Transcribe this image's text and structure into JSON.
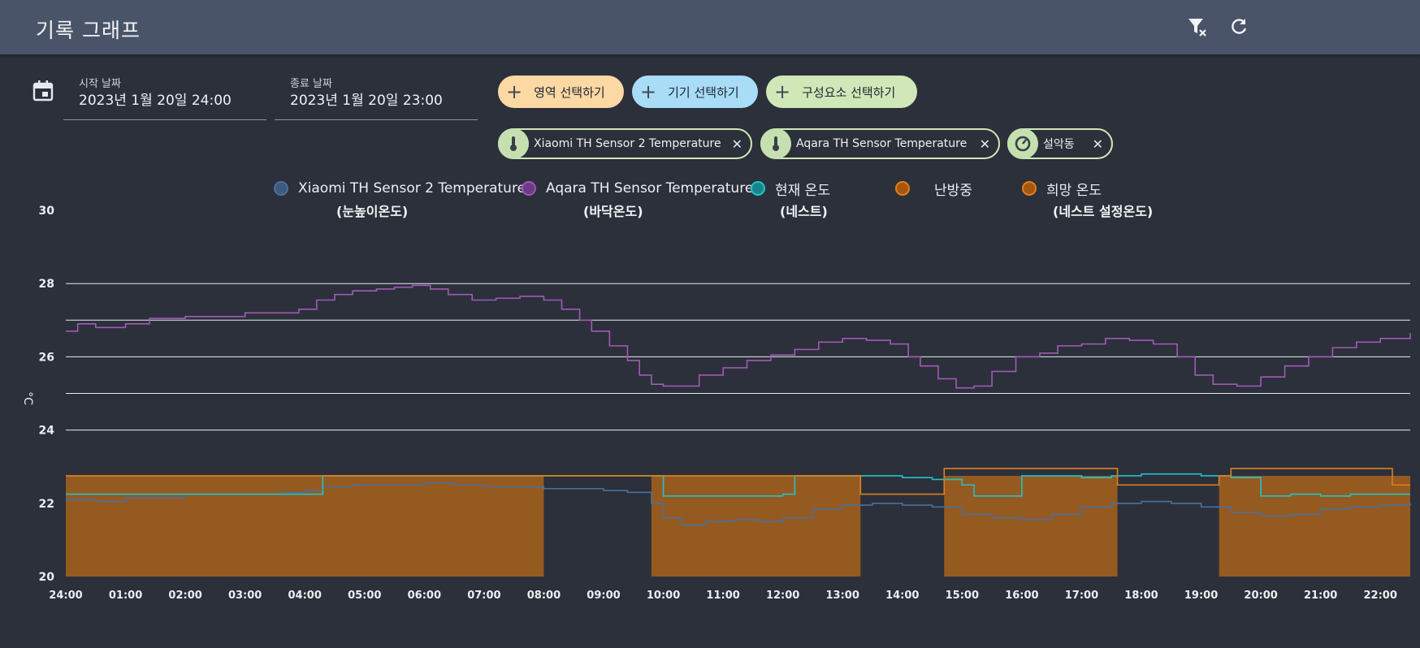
{
  "header": {
    "title": "기록 그래프",
    "icons": [
      "filter-remove-icon",
      "refresh-icon"
    ]
  },
  "date_range": {
    "icon": "calendar-icon",
    "start": {
      "label": "시작 날짜",
      "value": "2023년 1월 20일 24:00"
    },
    "end": {
      "label": "종료 날짜",
      "value": "2023년 1월 20일 23:00"
    }
  },
  "pickers": [
    {
      "label": "영역 선택하기",
      "color": "#fcd8a4"
    },
    {
      "label": "기기 선택하기",
      "color": "#a8dcf7"
    },
    {
      "label": "구성요소 선택하기",
      "color": "#d0e8b8"
    }
  ],
  "selected": [
    {
      "label": "Xiaomi TH Sensor 2 Temperature",
      "icon": "thermometer-icon"
    },
    {
      "label": "Aqara TH Sensor Temperature",
      "icon": "thermometer-icon"
    },
    {
      "label": "설악동",
      "icon": "thermostat-icon"
    }
  ],
  "legend": [
    {
      "label": "Xiaomi TH Sensor 2 Temperature",
      "note": "(눈높이온도)",
      "color": "#3d5a80"
    },
    {
      "label": "Aqara TH Sensor Temperature",
      "note": "(바닥온도)",
      "color": "#8e44ad"
    },
    {
      "label": "현재 온도",
      "note": "(네스트)",
      "color": "#1aa6ab"
    },
    {
      "label": "난방중",
      "note": "",
      "color": "#c66d16"
    },
    {
      "label": "희망 온도",
      "note": "(네스트 설정온도)",
      "color": "#c66d16"
    }
  ],
  "chart_data": {
    "type": "line",
    "ylabel": "°C",
    "ylim": [
      20,
      30
    ],
    "yticks": [
      20,
      22,
      24,
      26,
      28,
      30
    ],
    "xlim": [
      0,
      22.5
    ],
    "xticks": [
      "24:00",
      "01:00",
      "02:00",
      "03:00",
      "04:00",
      "05:00",
      "06:00",
      "07:00",
      "08:00",
      "09:00",
      "10:00",
      "11:00",
      "12:00",
      "13:00",
      "14:00",
      "15:00",
      "16:00",
      "17:00",
      "18:00",
      "19:00",
      "20:00",
      "21:00",
      "22:00"
    ],
    "grid_values": [
      24,
      25,
      26,
      27,
      28
    ],
    "series": [
      {
        "name": "Aqara TH Sensor Temperature",
        "color": "#a259b5",
        "x": [
          0,
          0.2,
          0.5,
          1.0,
          1.4,
          2.0,
          2.5,
          3.0,
          3.5,
          3.9,
          4.2,
          4.5,
          4.8,
          5.2,
          5.5,
          5.8,
          6.1,
          6.4,
          6.8,
          7.2,
          7.6,
          8.0,
          8.3,
          8.6,
          8.8,
          9.1,
          9.4,
          9.6,
          9.8,
          10.0,
          10.2,
          10.6,
          11.0,
          11.4,
          11.8,
          12.2,
          12.6,
          13.0,
          13.4,
          13.8,
          14.1,
          14.3,
          14.6,
          14.9,
          15.2,
          15.5,
          15.9,
          16.3,
          16.6,
          17.0,
          17.4,
          17.8,
          18.2,
          18.6,
          18.9,
          19.2,
          19.6,
          20.0,
          20.4,
          20.8,
          21.2,
          21.6,
          22.0,
          22.5
        ],
        "y": [
          26.7,
          26.9,
          26.8,
          26.9,
          27.05,
          27.1,
          27.1,
          27.2,
          27.2,
          27.3,
          27.55,
          27.7,
          27.8,
          27.85,
          27.9,
          27.95,
          27.85,
          27.7,
          27.55,
          27.6,
          27.65,
          27.55,
          27.3,
          27.0,
          26.7,
          26.3,
          25.9,
          25.5,
          25.25,
          25.2,
          25.2,
          25.5,
          25.7,
          25.9,
          26.05,
          26.2,
          26.4,
          26.5,
          26.45,
          26.35,
          26.0,
          25.75,
          25.4,
          25.15,
          25.2,
          25.6,
          26.0,
          26.1,
          26.3,
          26.35,
          26.5,
          26.45,
          26.35,
          26.0,
          25.5,
          25.25,
          25.2,
          25.45,
          25.75,
          26.0,
          26.25,
          26.4,
          26.5,
          26.65
        ]
      },
      {
        "name": "Xiaomi TH Sensor 2 Temperature",
        "color": "#4a6f9a",
        "x": [
          0,
          0.5,
          1.0,
          2.0,
          3.0,
          3.6,
          4.0,
          4.3,
          4.8,
          5.5,
          6.0,
          6.5,
          7.0,
          8.0,
          9.0,
          9.4,
          9.8,
          10.0,
          10.3,
          10.7,
          11.2,
          11.6,
          12.0,
          12.5,
          13.0,
          13.5,
          14.0,
          14.5,
          15.0,
          15.5,
          16.0,
          16.5,
          17.0,
          17.5,
          18.0,
          18.5,
          19.0,
          19.5,
          20.0,
          20.5,
          21.0,
          21.5,
          22.0,
          22.5
        ],
        "y": [
          22.1,
          22.05,
          22.15,
          22.25,
          22.25,
          22.3,
          22.35,
          22.45,
          22.5,
          22.5,
          22.55,
          22.5,
          22.45,
          22.4,
          22.35,
          22.3,
          22.0,
          21.6,
          21.4,
          21.5,
          21.55,
          21.5,
          21.6,
          21.85,
          21.95,
          22.0,
          21.95,
          21.9,
          21.7,
          21.6,
          21.55,
          21.7,
          21.9,
          22.0,
          22.05,
          22.0,
          21.9,
          21.75,
          21.65,
          21.7,
          21.85,
          21.9,
          21.95,
          22.0
        ]
      },
      {
        "name": "현재 온도",
        "color": "#20c3c6",
        "x": [
          0,
          4.1,
          4.3,
          5.0,
          5.5,
          6.0,
          7.0,
          7.3,
          7.5,
          8.0,
          9.0,
          9.8,
          10.0,
          10.5,
          11.0,
          11.5,
          12.0,
          12.2,
          12.5,
          13.0,
          13.5,
          14.0,
          14.5,
          15.0,
          15.2,
          15.8,
          16.0,
          16.5,
          17.0,
          17.5,
          18.0,
          18.5,
          19.0,
          19.5,
          20.0,
          20.5,
          21.0,
          21.5,
          22.0,
          22.5
        ],
        "y": [
          22.25,
          22.25,
          22.75,
          22.75,
          22.75,
          22.75,
          22.75,
          22.75,
          22.75,
          22.75,
          22.75,
          22.75,
          22.2,
          22.2,
          22.2,
          22.2,
          22.25,
          22.75,
          22.75,
          22.75,
          22.75,
          22.7,
          22.65,
          22.5,
          22.2,
          22.2,
          22.75,
          22.75,
          22.7,
          22.75,
          22.8,
          22.8,
          22.75,
          22.7,
          22.2,
          22.25,
          22.2,
          22.25,
          22.25,
          22.25
        ]
      },
      {
        "name": "희망 온도",
        "color": "#e0801a",
        "x": [
          0,
          13.1,
          13.3,
          14.0,
          14.7,
          15.0,
          16.0,
          17.0,
          17.6,
          18.5,
          19.3,
          19.5,
          20.0,
          21.0,
          22.0,
          22.2,
          22.5
        ],
        "y": [
          22.75,
          22.75,
          22.25,
          22.25,
          22.95,
          22.95,
          22.95,
          22.95,
          22.5,
          22.5,
          22.75,
          22.95,
          22.95,
          22.95,
          22.95,
          22.5,
          22.5
        ]
      }
    ],
    "heating_periods": [
      [
        0,
        8.0
      ],
      [
        9.8,
        13.3
      ],
      [
        14.7,
        17.6
      ],
      [
        19.3,
        22.5
      ]
    ],
    "heating_value": 22.75
  }
}
